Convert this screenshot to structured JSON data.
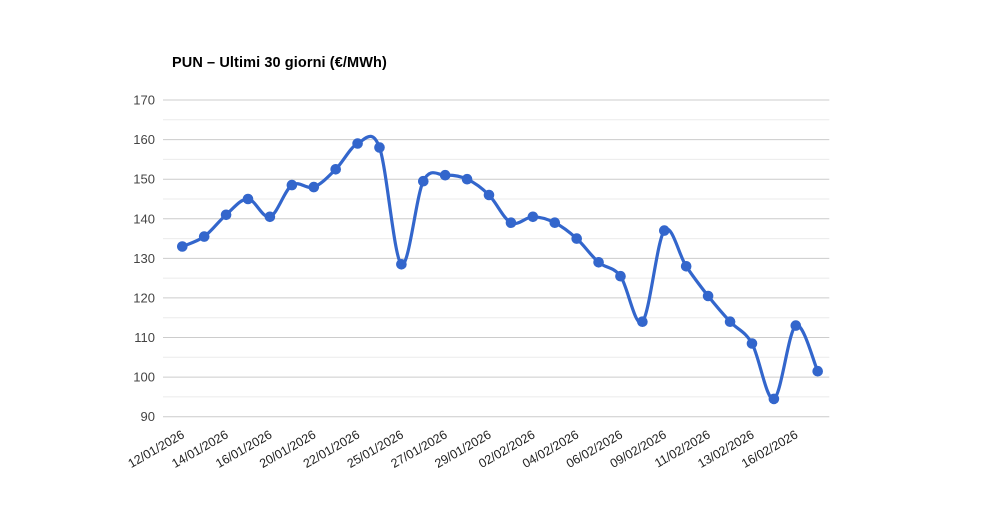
{
  "chart_data": {
    "type": "line",
    "title": "PUN – Ultimi 30 giorni (€/MWh)",
    "xlabel": "",
    "ylabel": "",
    "ylim": [
      90,
      170
    ],
    "y_ticks": [
      90,
      100,
      110,
      120,
      130,
      140,
      150,
      160,
      170
    ],
    "minor_grid_step": 5,
    "grid": "horizontal-only",
    "legend": "none",
    "smooth_curve": true,
    "x_tick_labels": [
      "12/01/2026",
      "14/01/2026",
      "16/01/2026",
      "20/01/2026",
      "22/01/2026",
      "25/01/2026",
      "27/01/2026",
      "29/01/2026",
      "02/02/2026",
      "04/02/2026",
      "06/02/2026",
      "09/02/2026",
      "11/02/2026",
      "13/02/2026",
      "16/02/2026"
    ],
    "x_label_every_n_points": 2,
    "series": [
      {
        "name": "PUN",
        "values": [
          133,
          135.5,
          141,
          145,
          140.5,
          148.5,
          148,
          152.5,
          159,
          158,
          128.5,
          149.5,
          151,
          150,
          146,
          139,
          140.5,
          139,
          135,
          129,
          125.5,
          114,
          137,
          128,
          120.5,
          114,
          108.5,
          94.5,
          113,
          101.5
        ]
      }
    ],
    "colors": {
      "line": "#3366cc",
      "marker": "#3366cc",
      "major_grid": "#cccccc",
      "minor_grid": "#ebebeb",
      "y_tick_text": "#444444",
      "x_tick_text": "#222222",
      "title_text": "#000000",
      "background": "#ffffff"
    }
  }
}
